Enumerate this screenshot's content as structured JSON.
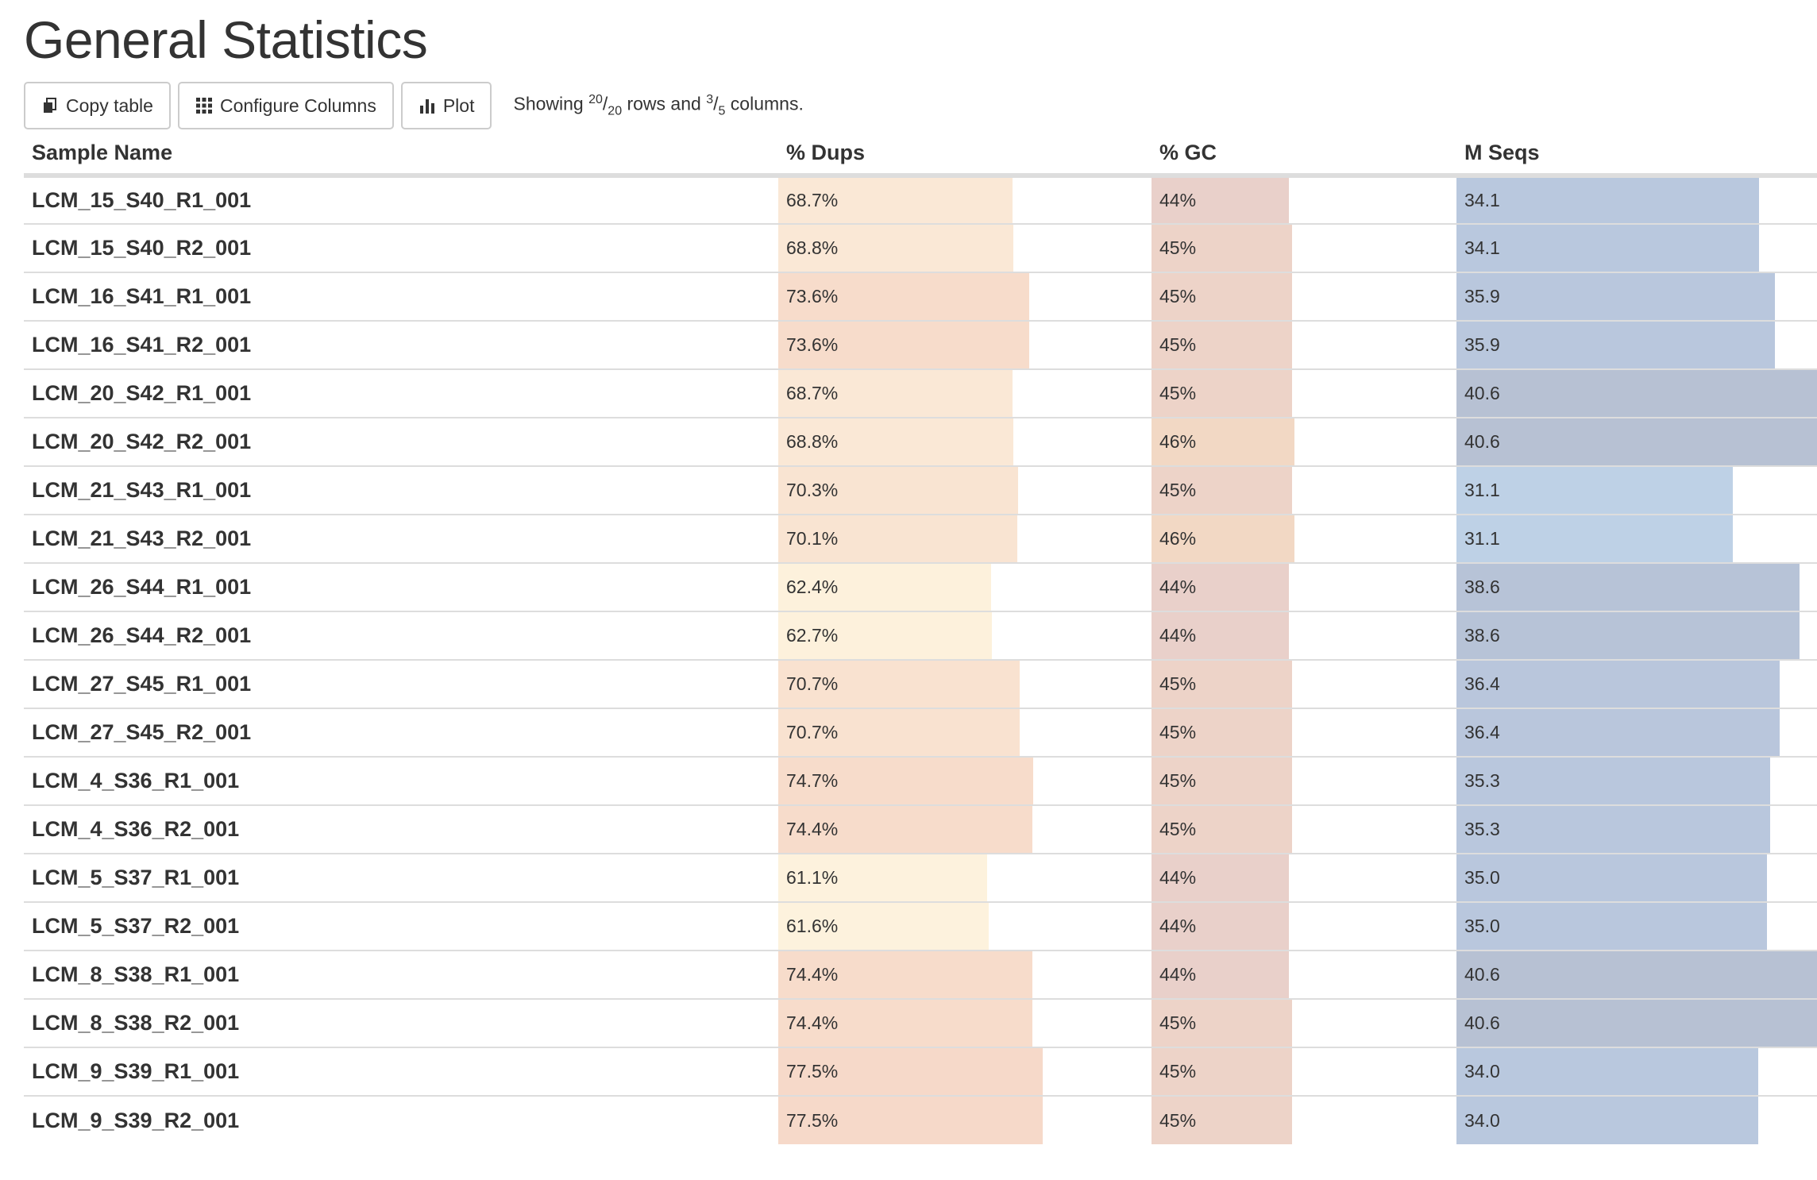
{
  "page": {
    "title": "General Statistics"
  },
  "toolbar": {
    "copy_label": "Copy table",
    "configure_label": "Configure Columns",
    "plot_label": "Plot",
    "showing_prefix": "Showing",
    "rows_shown": "20",
    "rows_total": "20",
    "rows_word": "rows and",
    "cols_shown": "3",
    "cols_total": "5",
    "cols_word": "columns."
  },
  "table": {
    "columns": [
      "Sample Name",
      "% Dups",
      "% GC",
      "M Seqs"
    ],
    "rows": [
      {
        "name": "LCM_15_S40_R1_001",
        "dups": "68.7%",
        "gc": "44%",
        "mseqs": "34.1"
      },
      {
        "name": "LCM_15_S40_R2_001",
        "dups": "68.8%",
        "gc": "45%",
        "mseqs": "34.1"
      },
      {
        "name": "LCM_16_S41_R1_001",
        "dups": "73.6%",
        "gc": "45%",
        "mseqs": "35.9"
      },
      {
        "name": "LCM_16_S41_R2_001",
        "dups": "73.6%",
        "gc": "45%",
        "mseqs": "35.9"
      },
      {
        "name": "LCM_20_S42_R1_001",
        "dups": "68.7%",
        "gc": "45%",
        "mseqs": "40.6"
      },
      {
        "name": "LCM_20_S42_R2_001",
        "dups": "68.8%",
        "gc": "46%",
        "mseqs": "40.6"
      },
      {
        "name": "LCM_21_S43_R1_001",
        "dups": "70.3%",
        "gc": "45%",
        "mseqs": "31.1"
      },
      {
        "name": "LCM_21_S43_R2_001",
        "dups": "70.1%",
        "gc": "46%",
        "mseqs": "31.1"
      },
      {
        "name": "LCM_26_S44_R1_001",
        "dups": "62.4%",
        "gc": "44%",
        "mseqs": "38.6"
      },
      {
        "name": "LCM_26_S44_R2_001",
        "dups": "62.7%",
        "gc": "44%",
        "mseqs": "38.6"
      },
      {
        "name": "LCM_27_S45_R1_001",
        "dups": "70.7%",
        "gc": "45%",
        "mseqs": "36.4"
      },
      {
        "name": "LCM_27_S45_R2_001",
        "dups": "70.7%",
        "gc": "45%",
        "mseqs": "36.4"
      },
      {
        "name": "LCM_4_S36_R1_001",
        "dups": "74.7%",
        "gc": "45%",
        "mseqs": "35.3"
      },
      {
        "name": "LCM_4_S36_R2_001",
        "dups": "74.4%",
        "gc": "45%",
        "mseqs": "35.3"
      },
      {
        "name": "LCM_5_S37_R1_001",
        "dups": "61.1%",
        "gc": "44%",
        "mseqs": "35.0"
      },
      {
        "name": "LCM_5_S37_R2_001",
        "dups": "61.6%",
        "gc": "44%",
        "mseqs": "35.0"
      },
      {
        "name": "LCM_8_S38_R1_001",
        "dups": "74.4%",
        "gc": "44%",
        "mseqs": "40.6"
      },
      {
        "name": "LCM_8_S38_R2_001",
        "dups": "74.4%",
        "gc": "45%",
        "mseqs": "40.6"
      },
      {
        "name": "LCM_9_S39_R1_001",
        "dups": "77.5%",
        "gc": "45%",
        "mseqs": "34.0"
      },
      {
        "name": "LCM_9_S39_R2_001",
        "dups": "77.5%",
        "gc": "45%",
        "mseqs": "34.0"
      }
    ],
    "bar_fraction": {
      "dups": [
        0.687,
        0.688,
        0.736,
        0.736,
        0.687,
        0.688,
        0.703,
        0.701,
        0.624,
        0.627,
        0.707,
        0.707,
        0.747,
        0.744,
        0.611,
        0.616,
        0.744,
        0.744,
        0.775,
        0.775
      ],
      "gc": [
        0.44,
        0.45,
        0.45,
        0.45,
        0.45,
        0.46,
        0.45,
        0.46,
        0.44,
        0.44,
        0.45,
        0.45,
        0.45,
        0.45,
        0.44,
        0.44,
        0.44,
        0.45,
        0.45,
        0.45
      ],
      "mseqs": [
        0.84,
        0.84,
        0.884,
        0.884,
        1.0,
        1.0,
        0.766,
        0.766,
        0.951,
        0.951,
        0.897,
        0.897,
        0.869,
        0.869,
        0.862,
        0.862,
        1.0,
        1.0,
        0.837,
        0.837
      ]
    },
    "bar_colors": {
      "dups": [
        "#fae8d6",
        "#fae8d6",
        "#f7dccb",
        "#f7dccb",
        "#fae8d6",
        "#fae8d6",
        "#f9e4d2",
        "#f9e4d2",
        "#fdf1dc",
        "#fdf1dc",
        "#f9e2d0",
        "#f9e2d0",
        "#f7dccb",
        "#f7dccb",
        "#fdf2dd",
        "#fdf2dd",
        "#f7dccb",
        "#f7dccb",
        "#f6d9c9",
        "#f6d9c9"
      ],
      "gc": [
        "#e9d0ca",
        "#edd3c8",
        "#edd3c8",
        "#edd3c8",
        "#edd3c8",
        "#f2d8c4",
        "#edd3c8",
        "#f2d8c4",
        "#e9d0ca",
        "#e9d0ca",
        "#edd3c8",
        "#edd3c8",
        "#edd3c8",
        "#edd3c8",
        "#e9d0ca",
        "#e9d0ca",
        "#e9d0ca",
        "#edd3c8",
        "#edd3c8",
        "#edd3c8"
      ],
      "mseqs": [
        "#b9c8de",
        "#b9c8de",
        "#b9c7dd",
        "#b9c7dd",
        "#b7c1d3",
        "#b7c1d3",
        "#bed1e6",
        "#bed1e6",
        "#b7c3d7",
        "#b7c3d7",
        "#b9c6dc",
        "#b9c6dc",
        "#b9c7dd",
        "#b9c7dd",
        "#b9c7dd",
        "#b9c7dd",
        "#b7c1d3",
        "#b7c1d3",
        "#b9c8de",
        "#b9c8de"
      ]
    }
  }
}
